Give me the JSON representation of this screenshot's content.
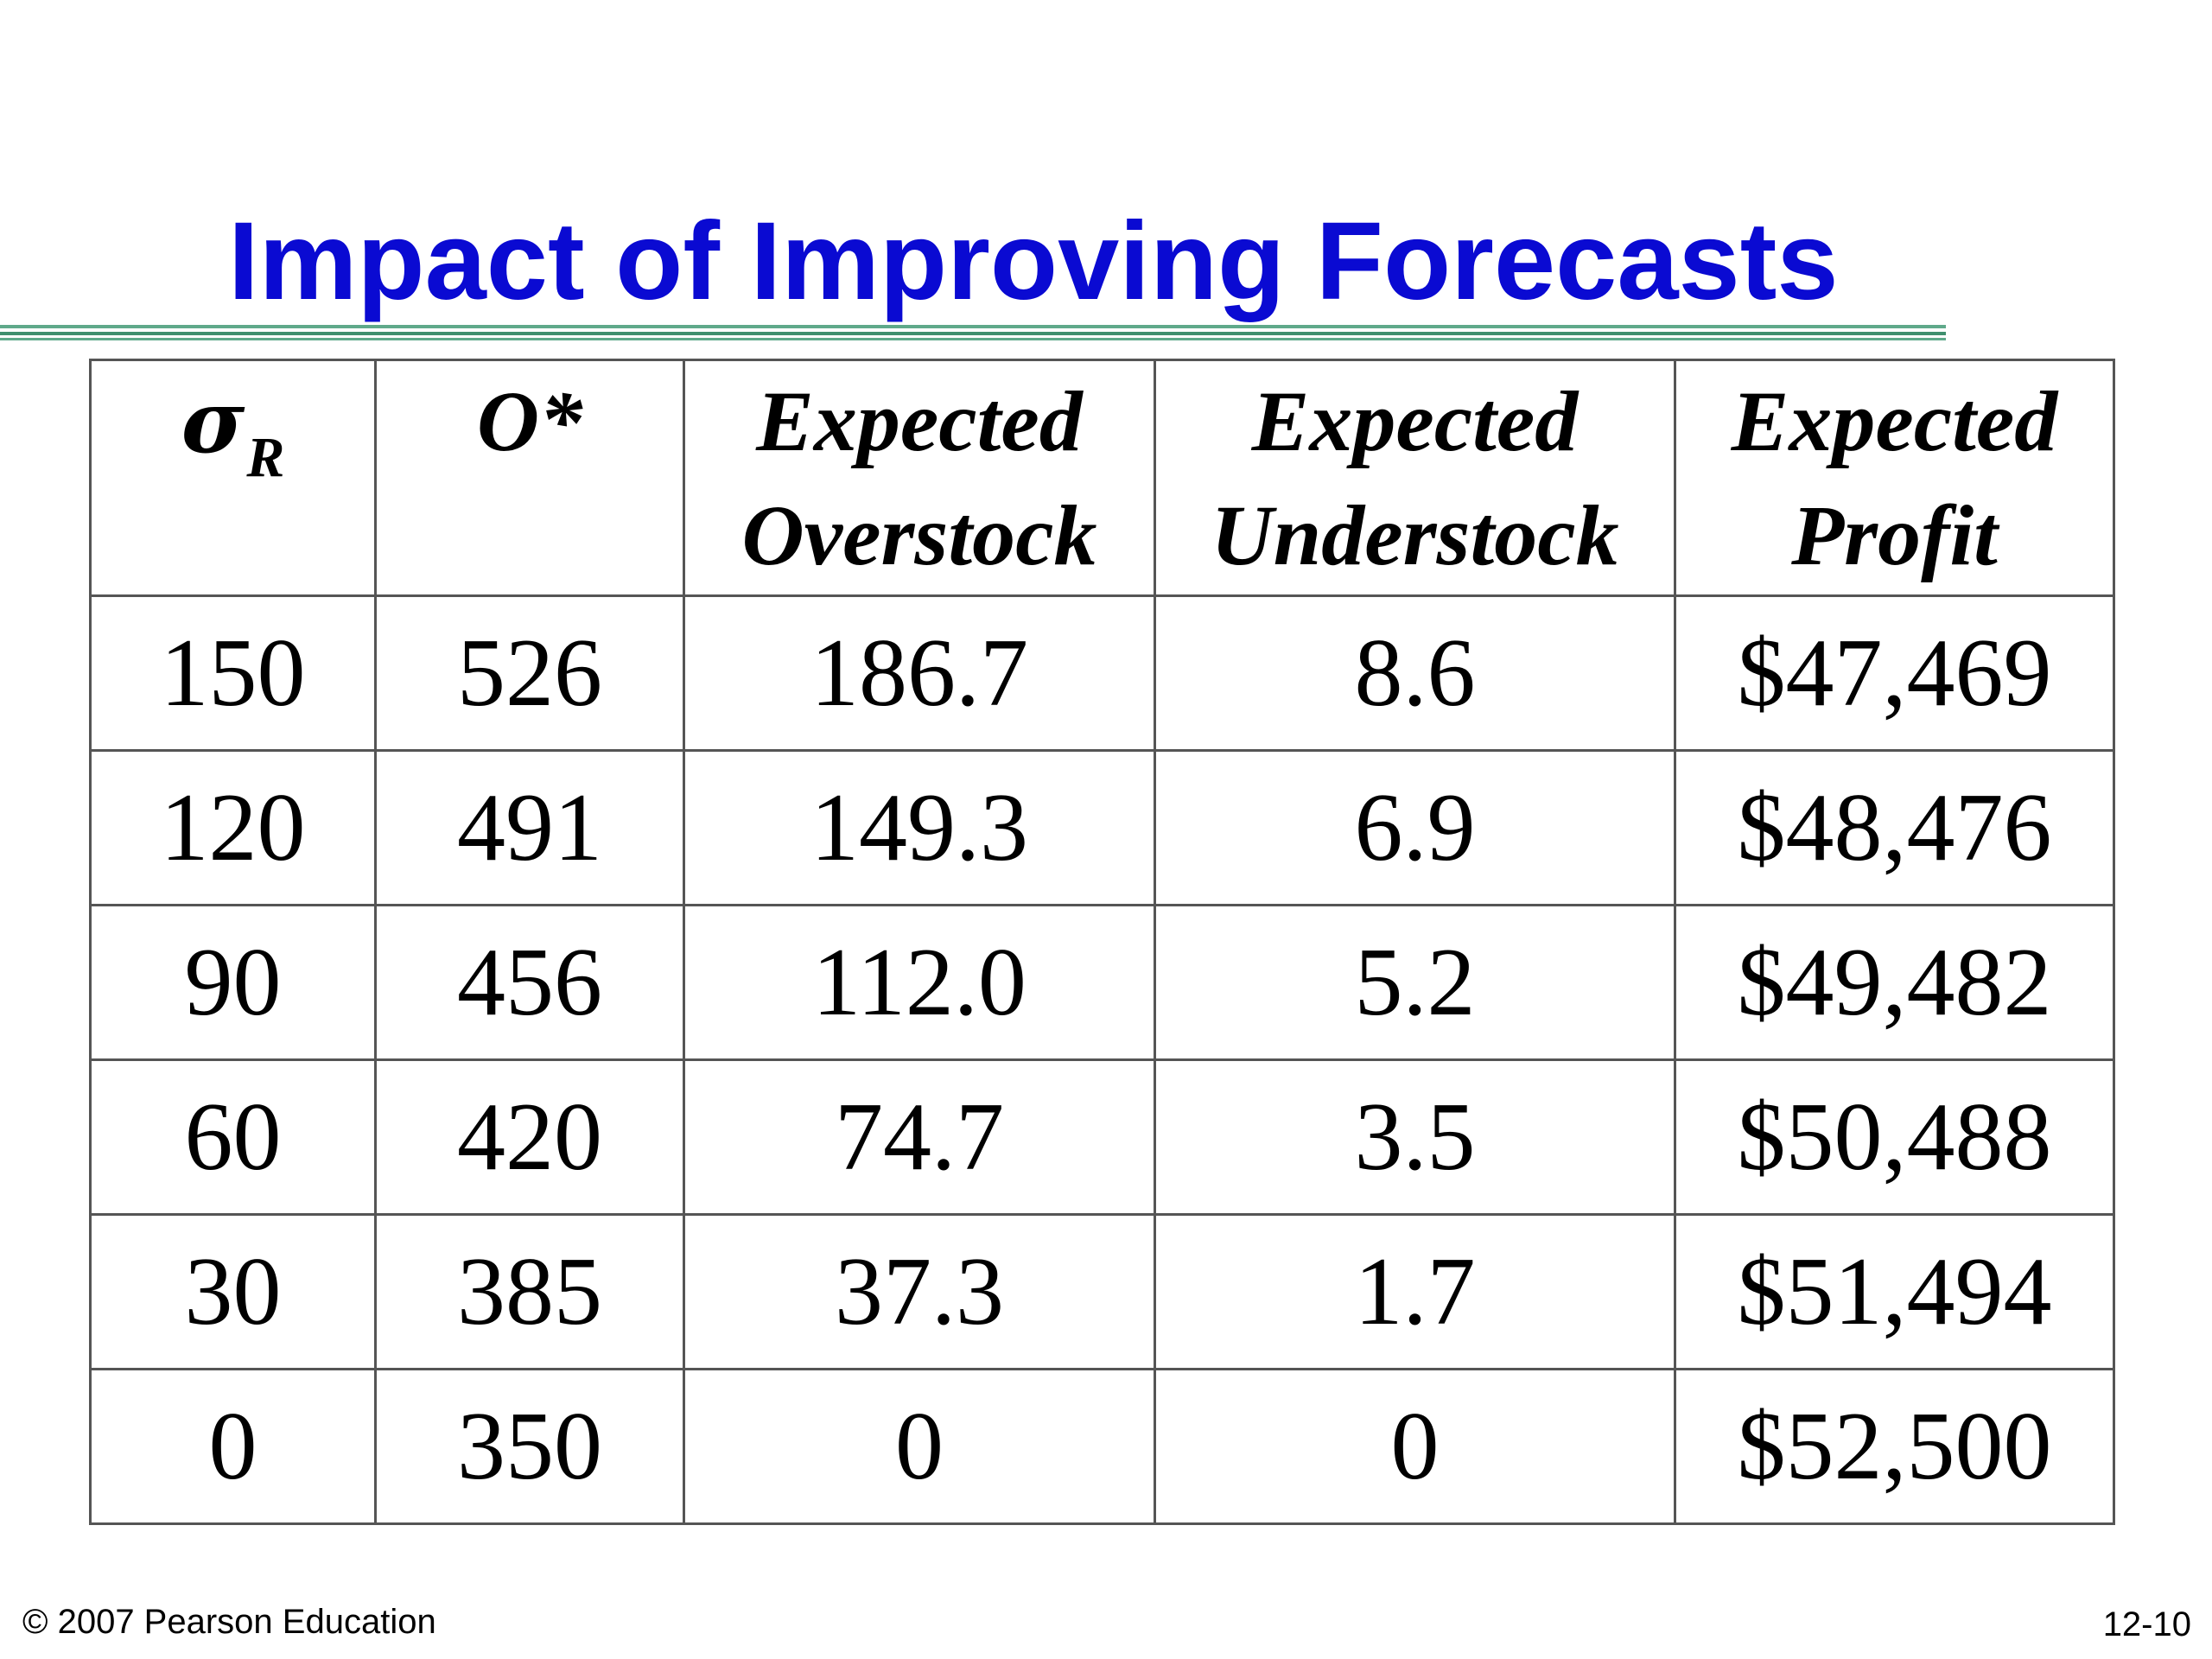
{
  "slide": {
    "title": "Impact of Improving Forecasts",
    "footer_left": "© 2007 Pearson Education",
    "footer_right": "12-10",
    "title_color": "#0a0ad2",
    "rule_color": "#5fa98a"
  },
  "table": {
    "headers": [
      {
        "symbol": "σ",
        "subscript": "R"
      },
      {
        "text": "O*"
      },
      {
        "line1": "Expected",
        "line2": "Overstock"
      },
      {
        "line1": "Expected",
        "line2": "Understock"
      },
      {
        "line1": "Expected",
        "line2": "Profit"
      }
    ],
    "rows": [
      [
        "150",
        "526",
        "186.7",
        "8.6",
        "$47,469"
      ],
      [
        "120",
        "491",
        "149.3",
        "6.9",
        "$48,476"
      ],
      [
        "90",
        "456",
        "112.0",
        "5.2",
        "$49,482"
      ],
      [
        "60",
        "420",
        "74.7",
        "3.5",
        "$50,488"
      ],
      [
        "30",
        "385",
        "37.3",
        "1.7",
        "$51,494"
      ],
      [
        "0",
        "350",
        "0",
        "0",
        "$52,500"
      ]
    ]
  }
}
